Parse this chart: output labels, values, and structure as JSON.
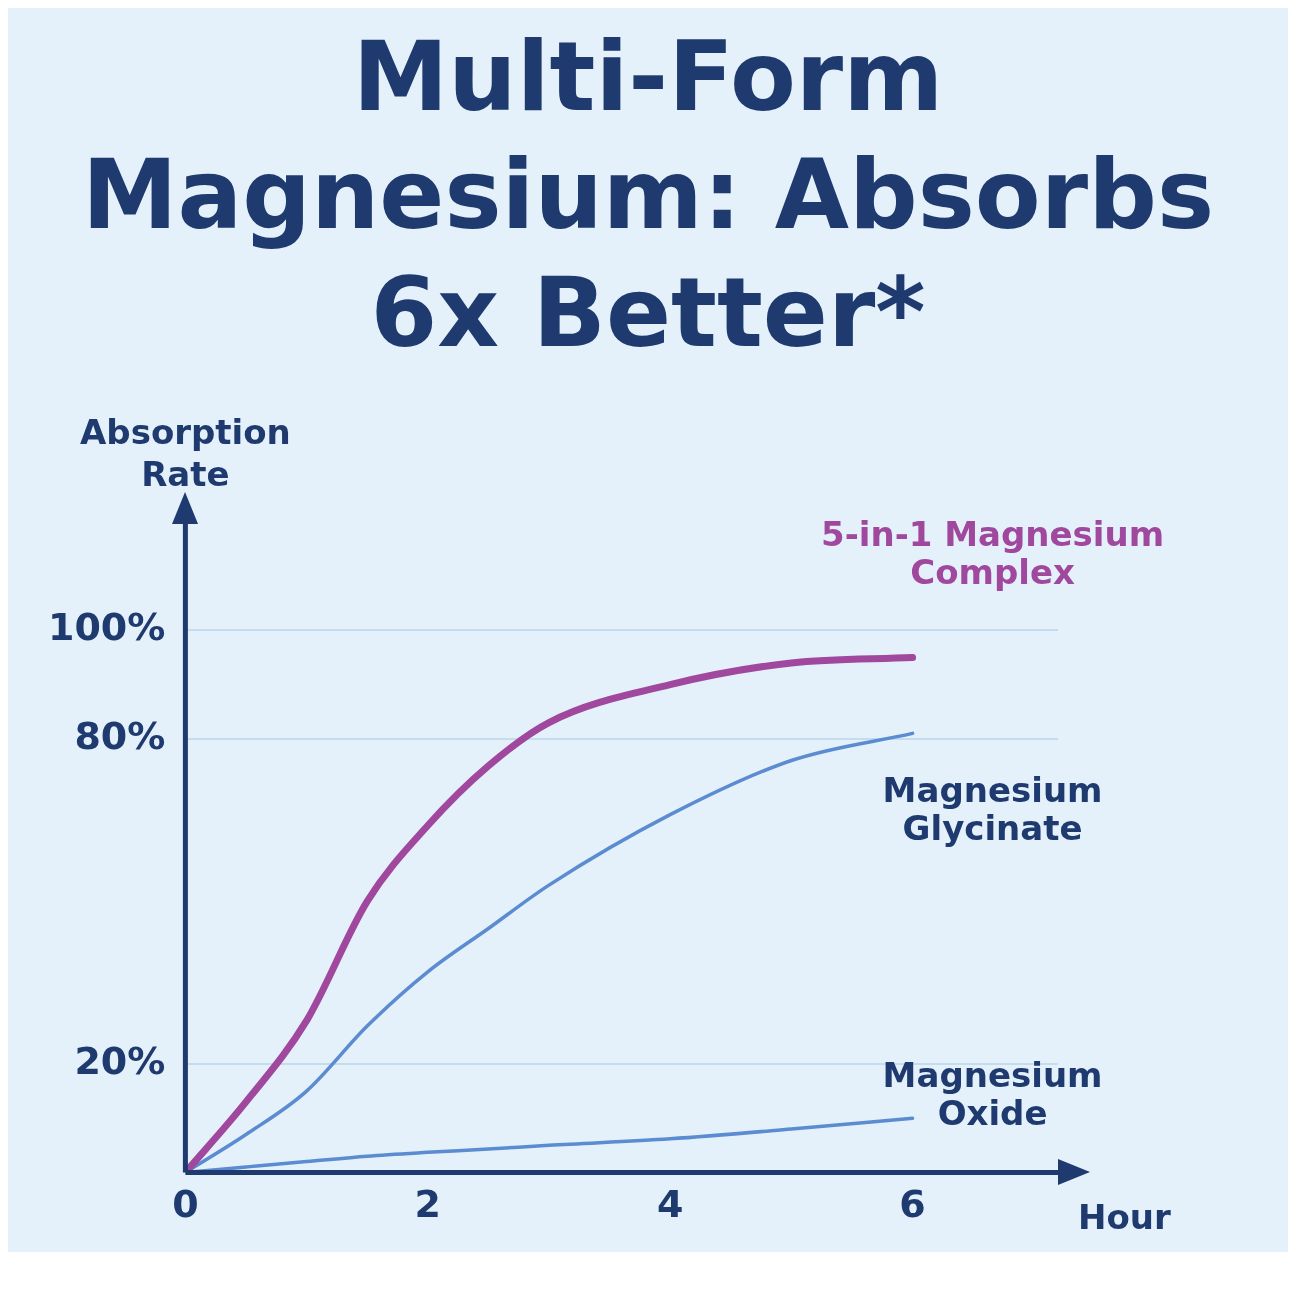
{
  "chart_data": {
    "type": "line",
    "title": "Multi-Form Magnesium: Absorbs 6x Better*",
    "xlabel": "Hour",
    "ylabel": "Absorption Rate",
    "x": [
      0,
      0.5,
      1,
      1.5,
      2,
      2.5,
      3,
      4,
      5,
      6
    ],
    "series": [
      {
        "name": "5-in-1 Magnesium Complex",
        "color": "#a0479e",
        "values": [
          0,
          13,
          28,
          50,
          64,
          75,
          83,
          90,
          94,
          95
        ]
      },
      {
        "name": "Magnesium Glycinate",
        "color": "#5b8bd0",
        "values": [
          0,
          7,
          15,
          27,
          37,
          45,
          53,
          66,
          76,
          81
        ]
      },
      {
        "name": "Magnesium Oxide",
        "color": "#5b8bd0",
        "values": [
          0,
          1,
          2,
          3,
          3.7,
          4.3,
          5,
          6.2,
          8,
          10
        ]
      }
    ],
    "xlim": [
      0,
      7.2
    ],
    "xticks": [
      0,
      2,
      4,
      6
    ],
    "ylim": [
      0,
      120
    ],
    "yticks": [
      {
        "value": 20,
        "label": "20%"
      },
      {
        "value": 80,
        "label": "80%"
      },
      {
        "value": 100,
        "label": "100%"
      }
    ],
    "grid": "y",
    "legend": false,
    "marker": "none",
    "line_style": "solid"
  }
}
